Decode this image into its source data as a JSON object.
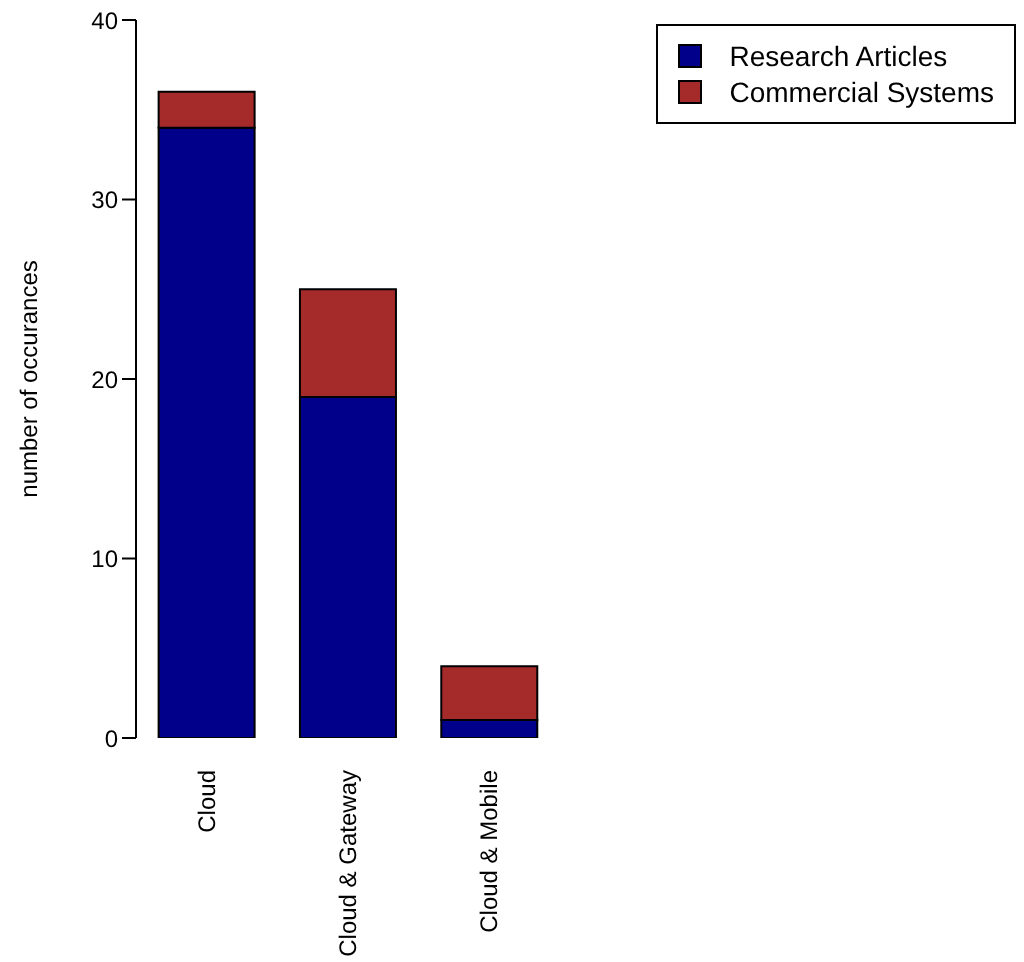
{
  "chart_data": {
    "type": "bar",
    "ylabel": "number of occurances",
    "categories": [
      "Cloud",
      "Cloud & Gateway",
      "Cloud & Mobile"
    ],
    "series": [
      {
        "name": "Research Articles",
        "color": "#00008b",
        "values": [
          34,
          19,
          1
        ]
      },
      {
        "name": "Commercial Systems",
        "color": "#a52a2a",
        "values": [
          2,
          6,
          3
        ]
      }
    ],
    "stacked": true,
    "ylim": [
      0,
      40
    ],
    "yticks": [
      0,
      10,
      20,
      30,
      40
    ],
    "grid": false,
    "legend": "top right"
  }
}
